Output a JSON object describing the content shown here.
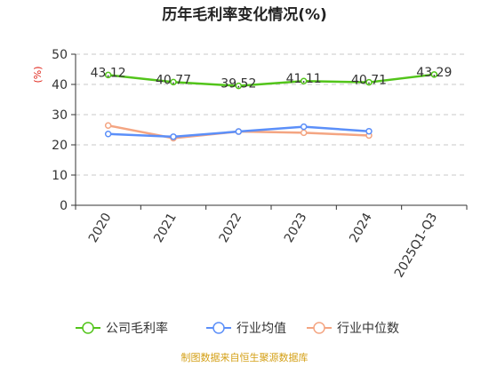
{
  "chart_data": {
    "type": "line",
    "title": "历年毛利率变化情况(%)",
    "ylabel": "(%)",
    "categories": [
      "2020",
      "2021",
      "2022",
      "2023",
      "2024",
      "2025Q1-Q3"
    ],
    "ylim": [
      0,
      50
    ],
    "yticks": [
      0,
      10,
      20,
      30,
      40,
      50
    ],
    "grid": true,
    "legend_position": "bottom",
    "series": [
      {
        "name": "公司毛利率",
        "color": "#52c41a",
        "values": [
          43.12,
          40.77,
          39.52,
          41.11,
          40.71,
          43.29
        ],
        "labels": [
          "43.12",
          "40.77",
          "39.52",
          "41.11",
          "40.71",
          "43.29"
        ]
      },
      {
        "name": "行业均值",
        "color": "#5b8ff9",
        "values": [
          23.6,
          22.7,
          24.4,
          26.0,
          24.5,
          null
        ]
      },
      {
        "name": "行业中位数",
        "color": "#f4a582",
        "values": [
          26.4,
          22.2,
          24.4,
          24.0,
          23.1,
          null
        ]
      }
    ]
  },
  "source": "制图数据来自恒生聚源数据库"
}
